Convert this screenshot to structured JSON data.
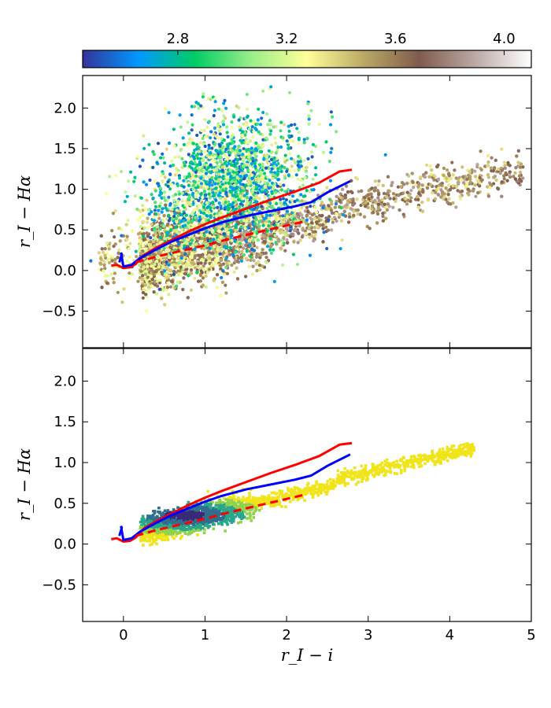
{
  "chart_data": [
    {
      "type": "scatter",
      "panel": "top",
      "color_mapping": "colorbar",
      "colorbar": {
        "ticks": [
          2.8,
          3.2,
          3.6,
          4.0
        ],
        "tick_labels": [
          "2.8",
          "3.2",
          "3.6",
          "4.0"
        ],
        "range": [
          2.45,
          4.1
        ],
        "colormap": "terrain",
        "colors": [
          "#333399",
          "#0099ff",
          "#00cc66",
          "#99ee88",
          "#ffff99",
          "#bbaa66",
          "#805b4d",
          "#bba9a4",
          "#ffffff"
        ]
      },
      "xlabel": "",
      "ylabel": "r_I − Hα",
      "xlim": [
        -0.5,
        5
      ],
      "ylim": [
        -0.95,
        2.4
      ],
      "yticks": [
        "−0.5",
        "0.0",
        "0.5",
        "1.0",
        "1.5",
        "2.0"
      ],
      "point_clouds": [
        {
          "name": "",
          "description": "main stellar locus, cool brown/tan",
          "x_range": [
            -0.3,
            4.9
          ],
          "slope_y_on_x": 0.21,
          "intercept": 0.12,
          "color_value_range": [
            3.3,
            3.9
          ]
        },
        {
          "name": "",
          "description": "Hα-excess clump, blue/green",
          "x_center": 1.3,
          "y_center": 1.1,
          "x_spread": 0.5,
          "y_spread": 0.4,
          "color_value_range": [
            2.5,
            3.2
          ]
        }
      ],
      "series": [
        {
          "name": "",
          "color": "#ff0000",
          "style": "solid",
          "x": [
            -0.15,
            -0.08,
            0.0,
            0.08,
            0.15,
            0.25,
            0.4,
            0.6,
            0.8,
            1.0,
            1.2,
            1.5,
            1.8,
            2.1,
            2.4,
            2.65,
            2.8
          ],
          "y": [
            0.06,
            0.07,
            0.03,
            0.04,
            0.08,
            0.19,
            0.28,
            0.38,
            0.48,
            0.57,
            0.65,
            0.76,
            0.87,
            0.97,
            1.08,
            1.22,
            1.24
          ]
        },
        {
          "name": "",
          "color": "#0000ff",
          "style": "solid",
          "x": [
            -0.05,
            -0.02,
            -0.03,
            0.0,
            0.1,
            0.2,
            0.4,
            0.6,
            0.8,
            1.0,
            1.2,
            1.5,
            1.8,
            2.1,
            2.3,
            2.5,
            2.78
          ],
          "y": [
            0.1,
            0.2,
            0.22,
            0.05,
            0.07,
            0.15,
            0.26,
            0.36,
            0.44,
            0.52,
            0.59,
            0.67,
            0.73,
            0.79,
            0.84,
            0.96,
            1.1
          ]
        },
        {
          "name": "",
          "color": "#ff0000",
          "style": "dashed",
          "x": [
            0.15,
            0.4,
            0.7,
            1.0,
            1.3,
            1.6,
            1.9,
            2.2
          ],
          "y": [
            0.1,
            0.17,
            0.24,
            0.31,
            0.39,
            0.46,
            0.53,
            0.6
          ]
        }
      ]
    },
    {
      "type": "scatter",
      "panel": "bottom",
      "color_mapping": "density",
      "xlabel": "r_I − i",
      "ylabel": "r_I − Hα",
      "xlim": [
        -0.5,
        5
      ],
      "ylim": [
        -0.95,
        2.4
      ],
      "xticks": [
        "0",
        "1",
        "2",
        "3",
        "4",
        "5"
      ],
      "yticks": [
        "−0.5",
        "0.0",
        "0.5",
        "1.0",
        "1.5",
        "2.0"
      ],
      "density_cloud": {
        "x_range": [
          0.3,
          4.3
        ],
        "slope_y_on_x": 0.23,
        "intercept": 0.12,
        "peak_x": 0.75,
        "peak_y": 0.35,
        "colors": [
          "#f0e41a",
          "#92d34b",
          "#2aa78a",
          "#2f6f8e",
          "#3b2a78"
        ]
      },
      "series": [
        {
          "name": "",
          "color": "#ff0000",
          "style": "solid",
          "x": [
            -0.15,
            -0.08,
            0.0,
            0.08,
            0.15,
            0.25,
            0.4,
            0.6,
            0.8,
            1.0,
            1.2,
            1.5,
            1.8,
            2.1,
            2.4,
            2.65,
            2.8
          ],
          "y": [
            0.06,
            0.07,
            0.03,
            0.04,
            0.08,
            0.19,
            0.28,
            0.38,
            0.48,
            0.57,
            0.65,
            0.76,
            0.87,
            0.97,
            1.08,
            1.22,
            1.24
          ]
        },
        {
          "name": "",
          "color": "#0000ff",
          "style": "solid",
          "x": [
            -0.05,
            -0.02,
            -0.03,
            0.0,
            0.1,
            0.2,
            0.4,
            0.6,
            0.8,
            1.0,
            1.2,
            1.5,
            1.8,
            2.1,
            2.3,
            2.5,
            2.78
          ],
          "y": [
            0.1,
            0.2,
            0.22,
            0.05,
            0.07,
            0.15,
            0.26,
            0.36,
            0.44,
            0.52,
            0.59,
            0.67,
            0.73,
            0.79,
            0.84,
            0.96,
            1.1
          ]
        },
        {
          "name": "",
          "color": "#ff0000",
          "style": "dashed",
          "x": [
            0.15,
            0.4,
            0.7,
            1.0,
            1.3,
            1.6,
            1.9,
            2.2
          ],
          "y": [
            0.1,
            0.17,
            0.24,
            0.31,
            0.39,
            0.46,
            0.53,
            0.6
          ]
        }
      ]
    }
  ]
}
